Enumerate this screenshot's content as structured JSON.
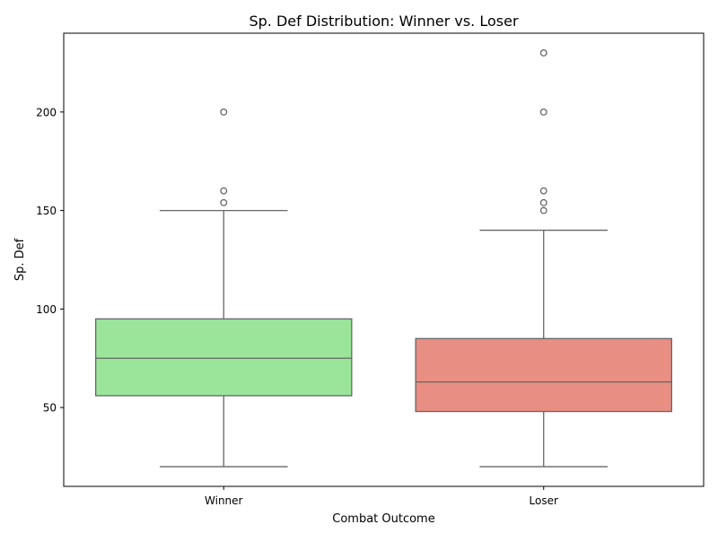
{
  "chart_data": {
    "type": "box",
    "title": "Sp. Def Distribution: Winner vs. Loser",
    "xlabel": "Combat Outcome",
    "ylabel": "Sp. Def",
    "categories": [
      "Winner",
      "Loser"
    ],
    "ylim": [
      10,
      240
    ],
    "yticks": [
      50,
      100,
      150,
      200
    ],
    "grid": false,
    "series": [
      {
        "category": "Winner",
        "color": "#9ae59a",
        "whisker_low": 20,
        "q1": 56,
        "median": 75,
        "q3": 95,
        "whisker_high": 150,
        "outliers": [
          154,
          160,
          200
        ]
      },
      {
        "category": "Loser",
        "color": "#e88e83",
        "whisker_low": 20,
        "q1": 48,
        "median": 63,
        "q3": 85,
        "whisker_high": 140,
        "outliers": [
          150,
          154,
          160,
          200,
          230
        ]
      }
    ],
    "style": {
      "edge_color": "#666666",
      "axis_color": "#000000"
    }
  }
}
